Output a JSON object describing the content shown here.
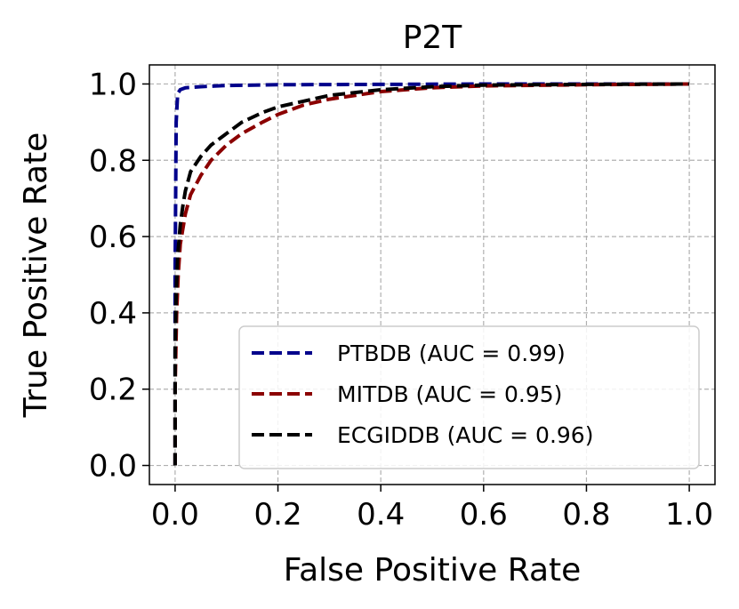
{
  "chart_data": {
    "type": "line",
    "title": "P2T",
    "xlabel": "False Positive Rate",
    "ylabel": "True Positive Rate",
    "xlim": [
      -0.05,
      1.05
    ],
    "ylim": [
      -0.05,
      1.05
    ],
    "xticks": [
      0.0,
      0.2,
      0.4,
      0.6,
      0.8,
      1.0
    ],
    "xtick_labels": [
      "0.0",
      "0.2",
      "0.4",
      "0.6",
      "0.8",
      "1.0"
    ],
    "yticks": [
      0.0,
      0.2,
      0.4,
      0.6,
      0.8,
      1.0
    ],
    "ytick_labels": [
      "0.0",
      "0.2",
      "0.4",
      "0.6",
      "0.8",
      "1.0"
    ],
    "grid": true,
    "legend_position": "lower-right",
    "series": [
      {
        "name": "PTBDB (AUC = 0.99)",
        "color": "#00008b",
        "x": [
          0,
          0,
          0.002,
          0.005,
          0.01,
          0.02,
          0.05,
          0.1,
          0.2,
          0.4,
          0.6,
          1.0
        ],
        "y": [
          0,
          0.5,
          0.9,
          0.975,
          0.985,
          0.99,
          0.993,
          0.996,
          0.998,
          0.999,
          1.0,
          1.0
        ]
      },
      {
        "name": "MITDB (AUC = 0.95)",
        "color": "#8b0000",
        "x": [
          0,
          0,
          0.003,
          0.006,
          0.01,
          0.02,
          0.03,
          0.05,
          0.07,
          0.1,
          0.13,
          0.17,
          0.2,
          0.25,
          0.3,
          0.4,
          0.5,
          0.6,
          0.8,
          1.0
        ],
        "y": [
          0,
          0.2,
          0.4,
          0.5,
          0.58,
          0.66,
          0.71,
          0.76,
          0.8,
          0.84,
          0.87,
          0.9,
          0.92,
          0.945,
          0.96,
          0.98,
          0.99,
          0.995,
          0.998,
          1.0
        ]
      },
      {
        "name": "ECGIDDB (AUC = 0.96)",
        "color": "#000000",
        "x": [
          0,
          0,
          0.002,
          0.005,
          0.01,
          0.015,
          0.02,
          0.03,
          0.05,
          0.07,
          0.1,
          0.13,
          0.17,
          0.2,
          0.25,
          0.3,
          0.4,
          0.5,
          0.6,
          0.8,
          1.0
        ],
        "y": [
          0,
          0.3,
          0.45,
          0.55,
          0.63,
          0.68,
          0.72,
          0.77,
          0.81,
          0.84,
          0.87,
          0.9,
          0.925,
          0.94,
          0.955,
          0.97,
          0.985,
          0.993,
          0.997,
          0.999,
          1.0
        ]
      }
    ]
  }
}
